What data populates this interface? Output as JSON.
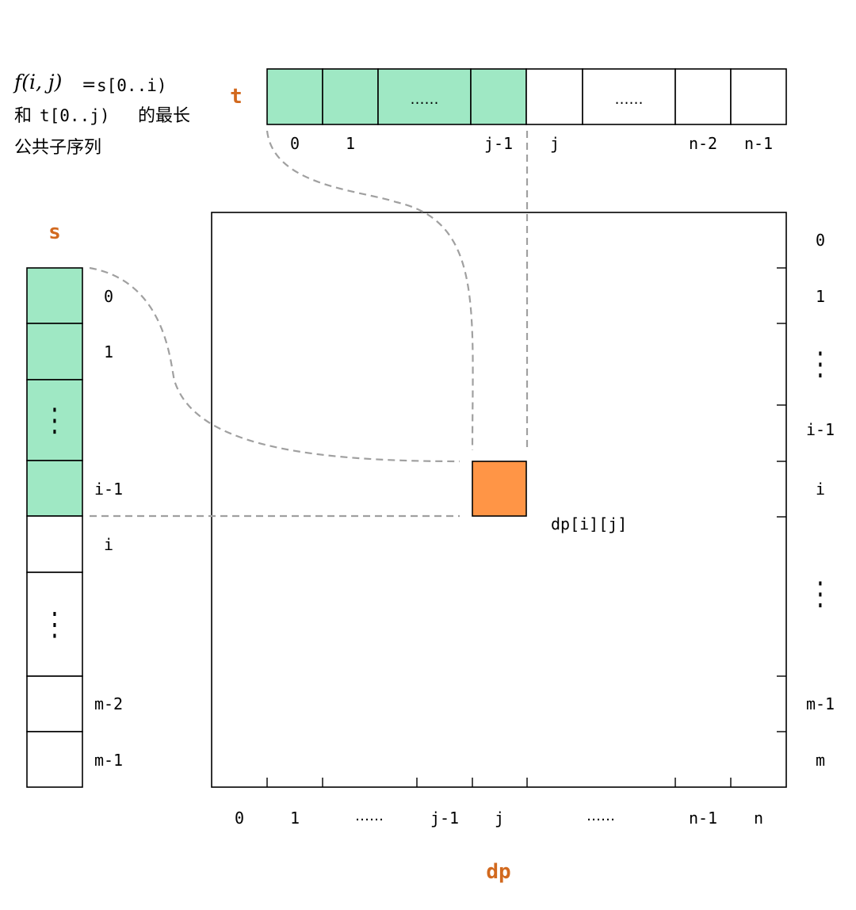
{
  "definition": {
    "math": "f(i, j)",
    "eq": "=",
    "line1_code": "s[0..i)",
    "line2_prefix": "和",
    "line2_code": "t[0..j)",
    "line2_suffix": "的最长",
    "line3": "公共子序列"
  },
  "t_array": {
    "name": "t",
    "cells": [
      {
        "text": "",
        "highlighted": true
      },
      {
        "text": "",
        "highlighted": true
      },
      {
        "text": "……",
        "highlighted": true
      },
      {
        "text": "",
        "highlighted": true
      },
      {
        "text": "",
        "highlighted": false
      },
      {
        "text": "……",
        "highlighted": false
      },
      {
        "text": "",
        "highlighted": false
      },
      {
        "text": "",
        "highlighted": false
      }
    ],
    "indices": [
      "0",
      "1",
      "j-1",
      "j",
      "n-2",
      "n-1"
    ]
  },
  "s_array": {
    "name": "s",
    "cells": [
      {
        "text": "",
        "highlighted": true
      },
      {
        "text": "",
        "highlighted": true
      },
      {
        "text": "⋮",
        "highlighted": true
      },
      {
        "text": "",
        "highlighted": true
      },
      {
        "text": "",
        "highlighted": false
      },
      {
        "text": "⋮",
        "highlighted": false
      },
      {
        "text": "",
        "highlighted": false
      },
      {
        "text": "",
        "highlighted": false
      }
    ],
    "indices": [
      "0",
      "1",
      "i-1",
      "i",
      "m-2",
      "m-1"
    ]
  },
  "dp_table": {
    "name": "dp",
    "cell_label": "dp[i][j]",
    "col_labels": [
      "0",
      "1",
      "……",
      "j-1",
      "j",
      "……",
      "n-1",
      "n"
    ],
    "row_labels": [
      "0",
      "1",
      "⋮",
      "i-1",
      "i",
      "⋮",
      "m-1",
      "m"
    ]
  },
  "colors": {
    "highlight": "#9fe8c4",
    "target": "#ff9546",
    "accent_text": "#d2691e",
    "connector": "#a0a0a0",
    "stroke": "#000000"
  }
}
